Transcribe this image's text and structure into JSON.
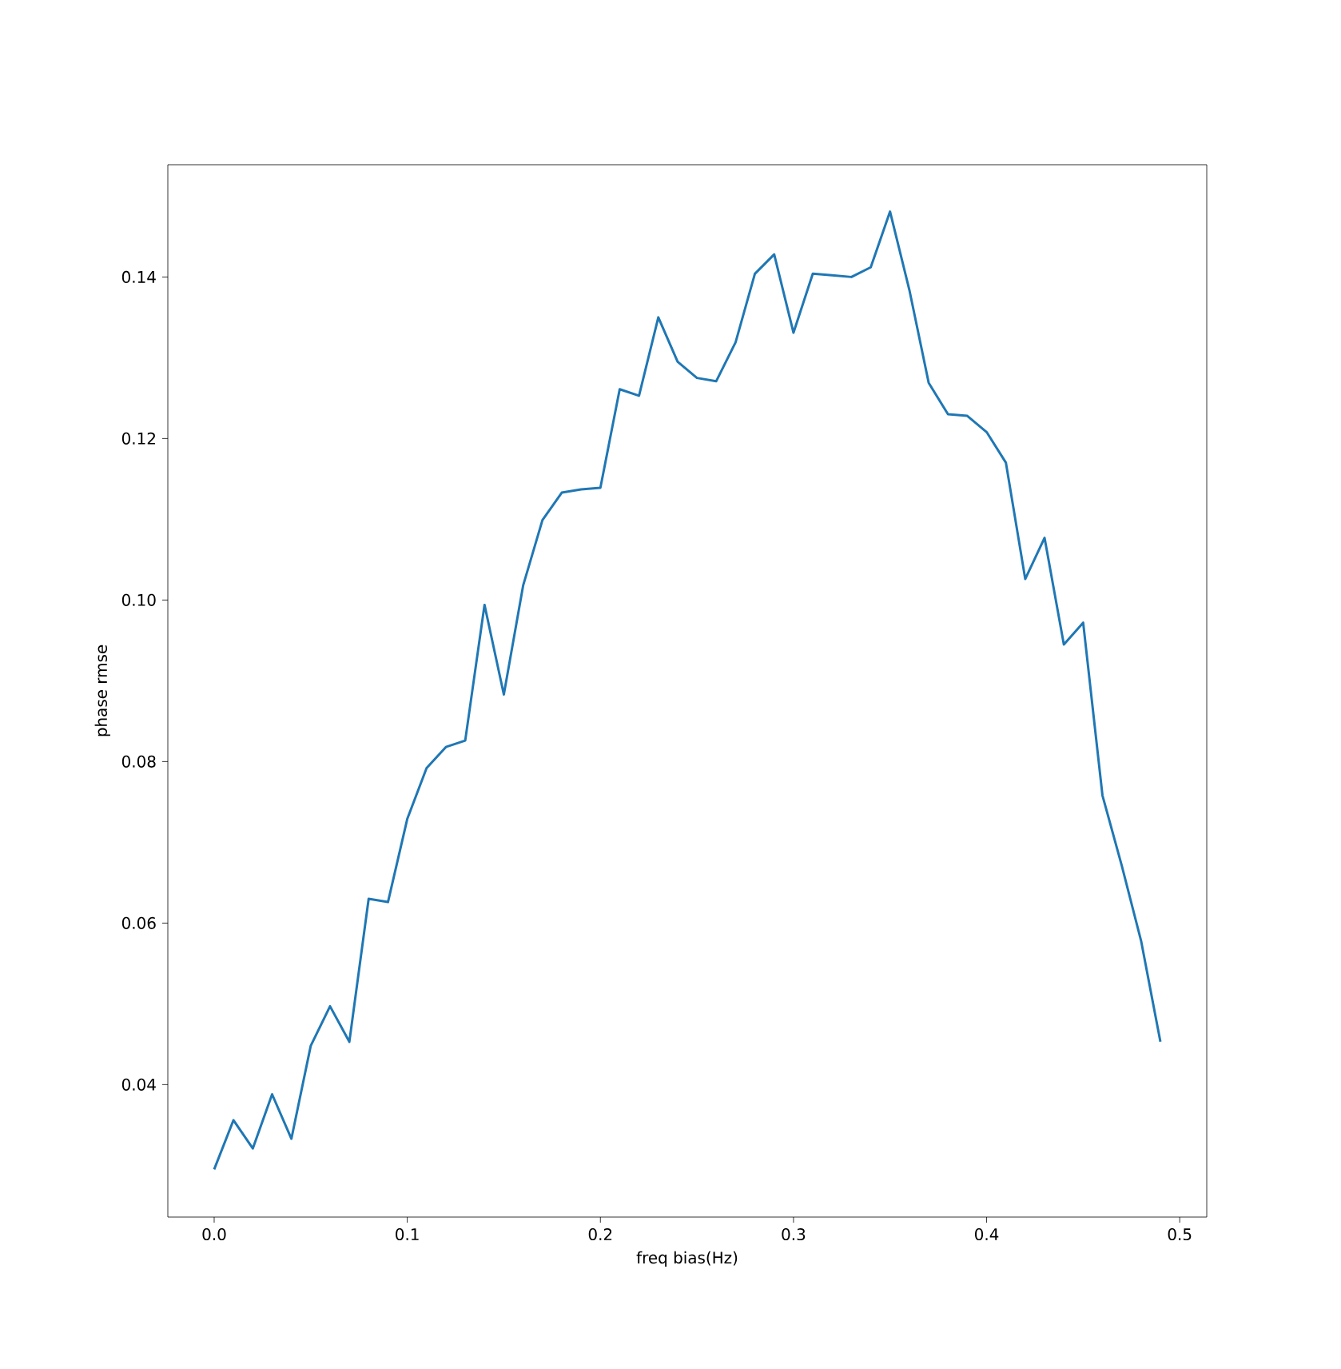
{
  "chart_data": {
    "type": "line",
    "xlabel": "freq bias(Hz)",
    "ylabel": "phase rmse",
    "x": [
      0,
      0.01,
      0.02,
      0.03,
      0.04,
      0.05,
      0.06,
      0.07,
      0.08,
      0.09,
      0.1,
      0.11,
      0.12,
      0.13,
      0.14,
      0.15,
      0.16,
      0.17,
      0.18,
      0.19,
      0.2,
      0.21,
      0.22,
      0.23,
      0.24,
      0.25,
      0.26,
      0.27,
      0.28,
      0.29,
      0.3,
      0.31,
      0.32,
      0.33,
      0.34,
      0.35,
      0.36,
      0.37,
      0.38,
      0.39,
      0.4,
      0.41,
      0.42,
      0.43,
      0.44,
      0.45,
      0.46,
      0.47,
      0.48,
      0.49
    ],
    "series": [
      {
        "color": "#1f77b4",
        "values": [
          0.0295,
          0.0356,
          0.0321,
          0.0388,
          0.0333,
          0.0448,
          0.0497,
          0.0453,
          0.063,
          0.0626,
          0.0729,
          0.0792,
          0.0818,
          0.0826,
          0.0994,
          0.0883,
          0.1018,
          0.1099,
          0.1133,
          0.1137,
          0.1139,
          0.1261,
          0.1253,
          0.135,
          0.1295,
          0.1275,
          0.1271,
          0.1319,
          0.1404,
          0.1428,
          0.1331,
          0.1404,
          0.1402,
          0.14,
          0.1412,
          0.1481,
          0.1384,
          0.1269,
          0.123,
          0.1228,
          0.1208,
          0.117,
          0.1026,
          0.1077,
          0.0945,
          0.0972,
          0.0758,
          0.0671,
          0.0578,
          0.0453
        ]
      }
    ],
    "xlim": [
      -0.024,
      0.514
    ],
    "ylim": [
      0.0236,
      0.1539
    ],
    "xticks": [
      {
        "value": 0,
        "label": "0.0"
      },
      {
        "value": 0.1,
        "label": "0.1"
      },
      {
        "value": 0.2,
        "label": "0.2"
      },
      {
        "value": 0.3,
        "label": "0.3"
      },
      {
        "value": 0.4,
        "label": "0.4"
      },
      {
        "value": 0.5,
        "label": "0.5"
      }
    ],
    "yticks": [
      {
        "value": 0.04,
        "label": "0.04"
      },
      {
        "value": 0.06,
        "label": "0.06"
      },
      {
        "value": 0.08,
        "label": "0.08"
      },
      {
        "value": 0.1,
        "label": "0.10"
      },
      {
        "value": 0.12,
        "label": "0.12"
      },
      {
        "value": 0.14,
        "label": "0.14"
      }
    ],
    "marker": "none",
    "line_style": "solid"
  }
}
